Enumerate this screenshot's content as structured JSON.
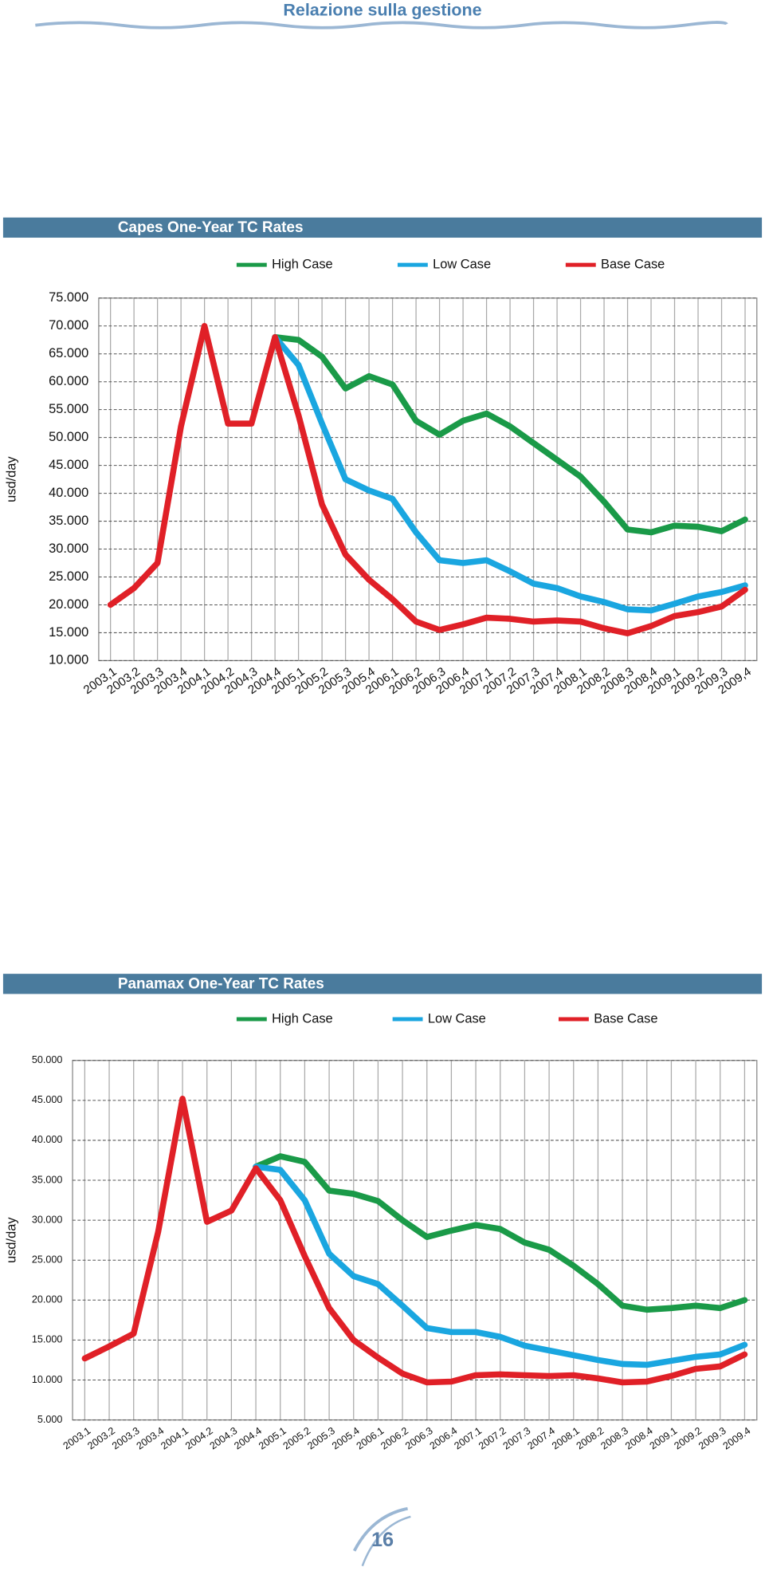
{
  "header": {
    "title": "Relazione sulla gestione"
  },
  "chart_data": [
    {
      "type": "line",
      "title": "Capes One-Year TC Rates",
      "y_label": "usd/day",
      "categories": [
        "2003,1",
        "2003,2",
        "2003,3",
        "2003,4",
        "2004,1",
        "2004,2",
        "2004,3",
        "2004,4",
        "2005,1",
        "2005,2",
        "2005,3",
        "2005,4",
        "2006,1",
        "2006,2",
        "2006,3",
        "2006,4",
        "2007,1",
        "2007,2",
        "2007,3",
        "2007,4",
        "2008,1",
        "2008,2",
        "2008,3",
        "2008,4",
        "2009,1",
        "2009,2",
        "2009,3",
        "2009,4"
      ],
      "series": [
        {
          "name": "High Case",
          "color": "#1a9a48",
          "values": [
            null,
            null,
            null,
            null,
            null,
            null,
            null,
            68000,
            67500,
            64500,
            58800,
            61000,
            59500,
            53000,
            50500,
            53000,
            54300,
            52000,
            49000,
            46000,
            43000,
            38500,
            33500,
            33000,
            34200,
            34000,
            33200,
            35300
          ]
        },
        {
          "name": "Low Case",
          "color": "#1aa6e0",
          "values": [
            null,
            null,
            null,
            null,
            null,
            null,
            null,
            68000,
            63000,
            52500,
            42500,
            40500,
            39000,
            33000,
            28000,
            27500,
            28000,
            26000,
            23800,
            23000,
            21500,
            20500,
            19200,
            19000,
            20200,
            21500,
            22300,
            23500
          ]
        },
        {
          "name": "Base Case",
          "color": "#e02027",
          "values": [
            20000,
            23000,
            27500,
            52000,
            70000,
            52500,
            52500,
            68000,
            54000,
            38000,
            29000,
            24500,
            21000,
            17000,
            15500,
            16500,
            17700,
            17500,
            17000,
            17200,
            17000,
            15800,
            14900,
            16200,
            18000,
            18700,
            19700,
            22700
          ]
        }
      ],
      "ylim": [
        10000,
        75000
      ],
      "yticks": [
        {
          "value": 10000,
          "label": "10.000"
        },
        {
          "value": 15000,
          "label": "15.000"
        },
        {
          "value": 20000,
          "label": "20.000"
        },
        {
          "value": 25000,
          "label": "25.000"
        },
        {
          "value": 30000,
          "label": "30.000"
        },
        {
          "value": 35000,
          "label": "35.000"
        },
        {
          "value": 40000,
          "label": "40.000"
        },
        {
          "value": 45000,
          "label": "45.000"
        },
        {
          "value": 50000,
          "label": "50.000"
        },
        {
          "value": 55000,
          "label": "55.000"
        },
        {
          "value": 60000,
          "label": "60.000"
        },
        {
          "value": 65000,
          "label": "65.000"
        },
        {
          "value": 70000,
          "label": "70.000"
        },
        {
          "value": 75000,
          "label": "75.000"
        }
      ],
      "grid": true,
      "legend_position": "top"
    },
    {
      "type": "line",
      "title": "Panamax One-Year TC Rates",
      "y_label": "usd/day",
      "categories": [
        "2003.1",
        "2003.2",
        "2003.3",
        "2003.4",
        "2004.1",
        "2004.2",
        "2004.3",
        "2004.4",
        "2005.1",
        "2005.2",
        "2005.3",
        "2005.4",
        "2006.1",
        "2006.2",
        "2006.3",
        "2006.4",
        "2007.1",
        "2007.2",
        "2007.3",
        "2007.4",
        "2008.1",
        "2008.2",
        "2008.3",
        "2008.4",
        "2009.1",
        "2009.2",
        "2009.3",
        "2009.4"
      ],
      "series": [
        {
          "name": "High Case",
          "color": "#1a9a48",
          "values": [
            null,
            null,
            null,
            null,
            null,
            null,
            null,
            36700,
            38000,
            37300,
            33700,
            33300,
            32400,
            30000,
            27900,
            28700,
            29400,
            28900,
            27200,
            26300,
            24300,
            22000,
            19300,
            18800,
            19000,
            19300,
            19000,
            20000
          ]
        },
        {
          "name": "Low Case",
          "color": "#1aa6e0",
          "values": [
            null,
            null,
            null,
            null,
            null,
            null,
            null,
            36700,
            36300,
            32500,
            25800,
            23000,
            22000,
            19300,
            16500,
            16000,
            16000,
            15400,
            14300,
            13700,
            13100,
            12500,
            12000,
            11900,
            12400,
            12900,
            13200,
            14400
          ]
        },
        {
          "name": "Base Case",
          "color": "#e02027",
          "values": [
            12700,
            14200,
            15800,
            28500,
            45200,
            29800,
            31200,
            36500,
            32500,
            25500,
            19000,
            15000,
            12800,
            10800,
            9700,
            9800,
            10600,
            10700,
            10600,
            10500,
            10600,
            10200,
            9700,
            9800,
            10500,
            11400,
            11700,
            13200
          ]
        }
      ],
      "ylim": [
        5000,
        50000
      ],
      "yticks": [
        {
          "value": 5000,
          "label": "5.000"
        },
        {
          "value": 10000,
          "label": "10.000"
        },
        {
          "value": 15000,
          "label": "15.000"
        },
        {
          "value": 20000,
          "label": "20.000"
        },
        {
          "value": 25000,
          "label": "25.000"
        },
        {
          "value": 30000,
          "label": "30.000"
        },
        {
          "value": 35000,
          "label": "35.000"
        },
        {
          "value": 40000,
          "label": "40.000"
        },
        {
          "value": 45000,
          "label": "45.000"
        },
        {
          "value": 50000,
          "label": "50.000"
        }
      ],
      "grid": true,
      "legend_position": "top"
    }
  ],
  "page_number": "16"
}
